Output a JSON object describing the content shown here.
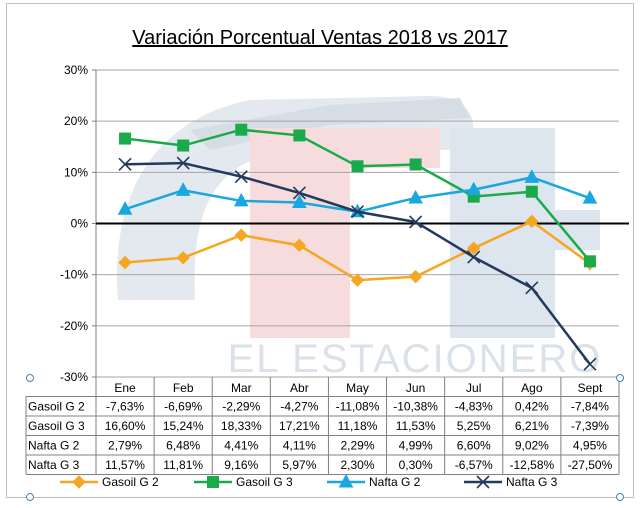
{
  "chart_data": {
    "type": "line",
    "title": "Variación Porcentual Ventas 2018 vs 2017",
    "xlabel": "",
    "ylabel": "",
    "ylim": [
      -30,
      30
    ],
    "y_ticks": [
      30,
      20,
      10,
      0,
      -10,
      -20,
      -30
    ],
    "y_tick_labels": [
      "30%",
      "20%",
      "10%",
      "0%",
      "-10%",
      "-20%",
      "-30%"
    ],
    "categories": [
      "Ene",
      "Feb",
      "Mar",
      "Abr",
      "May",
      "Jun",
      "Jul",
      "Ago",
      "Sept"
    ],
    "series": [
      {
        "name": "Gasoil G 2",
        "color": "#F5A623",
        "marker": "diamond",
        "values": [
          -7.63,
          -6.69,
          -2.29,
          -4.27,
          -11.08,
          -10.38,
          -4.83,
          0.42,
          -7.84
        ],
        "labels": [
          "-7,63%",
          "-6,69%",
          "-2,29%",
          "-4,27%",
          "-11,08%",
          "-10,38%",
          "-4,83%",
          "0,42%",
          "-7,84%"
        ]
      },
      {
        "name": "Gasoil G 3",
        "color": "#1BAA4A",
        "marker": "square",
        "values": [
          16.6,
          15.24,
          18.33,
          17.21,
          11.18,
          11.53,
          5.25,
          6.21,
          -7.39
        ],
        "labels": [
          "16,60%",
          "15,24%",
          "18,33%",
          "17,21%",
          "11,18%",
          "11,53%",
          "5,25%",
          "6,21%",
          "-7,39%"
        ]
      },
      {
        "name": "Nafta G 2",
        "color": "#1AA7E0",
        "marker": "triangle",
        "values": [
          2.79,
          6.48,
          4.41,
          4.11,
          2.29,
          4.99,
          6.6,
          9.02,
          4.95
        ],
        "labels": [
          "2,79%",
          "6,48%",
          "4,41%",
          "4,11%",
          "2,29%",
          "4,99%",
          "6,60%",
          "9,02%",
          "4,95%"
        ]
      },
      {
        "name": "Nafta G 3",
        "color": "#23395D",
        "marker": "x",
        "values": [
          11.57,
          11.81,
          9.16,
          5.97,
          2.3,
          0.3,
          -6.57,
          -12.58,
          -27.5
        ],
        "labels": [
          "11,57%",
          "11,81%",
          "9,16%",
          "5,97%",
          "2,30%",
          "0,30%",
          "-6,57%",
          "-12,58%",
          "-27,50%"
        ]
      }
    ],
    "watermark_text": "EL ESTACIONERO",
    "legend_position": "bottom"
  }
}
